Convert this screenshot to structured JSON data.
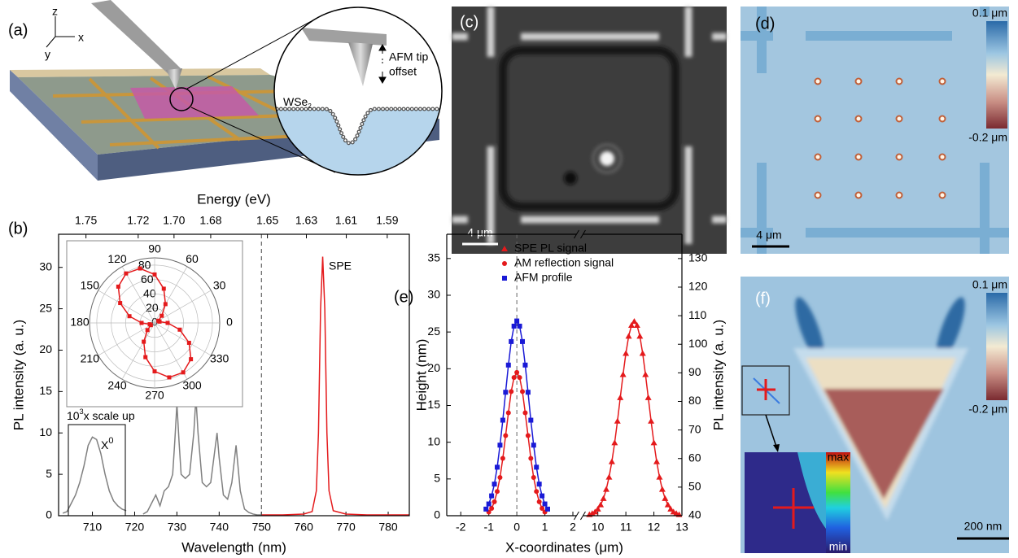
{
  "panels": {
    "a": {
      "label": "(a)",
      "axes": {
        "z": "z",
        "x": "x",
        "y": "y"
      },
      "tip_label": [
        "AFM tip",
        "offset"
      ],
      "material": {
        "base": "WSe",
        "sub": "2"
      }
    },
    "b": {
      "label": "(b)"
    },
    "c": {
      "label": "(c)",
      "scale_bar": "4 μm"
    },
    "d": {
      "label": "(d)",
      "scale_bar": "4 μm",
      "colorbar": [
        "0.1 μm",
        "-0.2 μm"
      ]
    },
    "e": {
      "label": "(e)"
    },
    "f": {
      "label": "(f)",
      "scale_bar": "200 nm",
      "colorbar": [
        "0.1 μm",
        "-0.2 μm"
      ],
      "inset_colorbar": [
        "max",
        "min"
      ]
    }
  },
  "chart_data": [
    {
      "type": "line",
      "xlabel": "Wavelength (nm)",
      "ylabel": "PL intensity (a. u.)",
      "x2label": "Energy (eV)",
      "xlim": [
        702,
        785
      ],
      "xticks": [
        710,
        720,
        730,
        740,
        750,
        760,
        770,
        780
      ],
      "ylim": [
        0,
        34
      ],
      "yticks": [
        0,
        5,
        10,
        15,
        20,
        25,
        30
      ],
      "x2ticks": [
        1.75,
        1.72,
        {
          "value": 1.7,
          "label": "1.70"
        },
        1.68,
        1.65,
        1.63,
        1.61,
        1.59
      ],
      "vline": 750,
      "annotations": {
        "spe": "SPE",
        "x0": {
          "base": "X",
          "sup": "0"
        },
        "scale": {
          "base": "10",
          "sup": "3",
          "rest": "x scale up"
        }
      },
      "series": [
        {
          "color": "#808080",
          "x": [
            703,
            704,
            705,
            706,
            707,
            708,
            709,
            710,
            711,
            712,
            713,
            714,
            715,
            716,
            717,
            718,
            720,
            722,
            723,
            724,
            725,
            726,
            727,
            728,
            729,
            729.5,
            730,
            730.5,
            731,
            732,
            733,
            734,
            734.5,
            735,
            736,
            737,
            738,
            739,
            739.5,
            740,
            741,
            742,
            743,
            744,
            745,
            746,
            747,
            748,
            749,
            750
          ],
          "values": [
            0.3,
            0.5,
            1.5,
            2.5,
            4,
            6,
            8.5,
            9.5,
            9.2,
            7.5,
            5,
            3,
            1.8,
            1.2,
            0.8,
            0.6,
            null,
            0.2,
            0.5,
            1.5,
            2.5,
            1.2,
            3,
            3.5,
            5,
            9,
            13.5,
            9,
            5,
            4.5,
            5,
            10,
            14.3,
            10,
            4,
            3.5,
            4,
            8,
            10,
            7,
            2.5,
            2,
            4,
            8.5,
            3,
            0.8,
            0.4,
            0.2,
            0.1,
            0.1
          ]
        },
        {
          "color": "#e41a1c",
          "x": [
            750,
            755,
            760,
            762,
            763,
            763.5,
            764,
            764.5,
            765,
            765.5,
            766,
            767,
            770,
            775,
            780,
            785
          ],
          "values": [
            0.1,
            0.1,
            0.2,
            0.5,
            3,
            10,
            25,
            31.3,
            25,
            10,
            3,
            0.6,
            0.2,
            0.1,
            0.1,
            0.1
          ]
        }
      ],
      "inset": {
        "type": "polar",
        "rlim": [
          0,
          90
        ],
        "rticks": [
          0,
          20,
          40,
          60,
          80
        ],
        "angle_ticks": [
          0,
          30,
          60,
          90,
          120,
          150,
          180,
          210,
          240,
          270,
          300,
          330
        ],
        "color": "#e41a1c",
        "angles": [
          0,
          15,
          30,
          45,
          60,
          75,
          90,
          105,
          120,
          135,
          150,
          165,
          180,
          195,
          210,
          225,
          240,
          255,
          270,
          285,
          300,
          315,
          330,
          345
        ],
        "values": [
          18,
          7,
          6,
          14,
          30,
          49,
          67,
          78,
          79,
          71,
          55,
          36,
          18,
          7,
          6,
          14,
          30,
          49,
          67,
          78,
          79,
          71,
          55,
          36
        ]
      }
    },
    {
      "type": "scatter",
      "xlabel": "X-coordinates (μm)",
      "ylabel": "Height (nm)",
      "y2label": "PL intensity (a. u.)",
      "xlim": [
        -2.5,
        13
      ],
      "xbreak": [
        2.1,
        9.5
      ],
      "xticks": [
        -2,
        -1,
        0,
        1,
        2,
        10,
        11,
        12,
        13
      ],
      "ylim": [
        0,
        38.3
      ],
      "yticks": [
        0,
        5,
        10,
        15,
        20,
        25,
        30,
        35
      ],
      "y2lim": [
        40,
        138.5
      ],
      "y2ticks": [
        40,
        50,
        60,
        70,
        80,
        90,
        100,
        110,
        120,
        130
      ],
      "vline": 0,
      "legend": "top-right",
      "series": [
        {
          "name": "SPE PL signal",
          "color": "#e41a1c",
          "marker": "triangle",
          "axis": "y2",
          "x": [
            9.7,
            9.8,
            9.9,
            10,
            10.1,
            10.2,
            10.3,
            10.4,
            10.5,
            10.6,
            10.7,
            10.8,
            10.9,
            11,
            11.1,
            11.2,
            11.3,
            11.4,
            11.5,
            11.6,
            11.7,
            11.8,
            11.9,
            12,
            12.1,
            12.2,
            12.3,
            12.4,
            12.5,
            12.6,
            12.7,
            12.8,
            12.9
          ],
          "values": [
            40.4,
            40.8,
            41.3,
            42.3,
            43.8,
            46,
            49.2,
            53.5,
            58.9,
            65.5,
            73.1,
            81.3,
            89.4,
            96.8,
            102.8,
            106.6,
            108,
            106.6,
            102.8,
            96.8,
            89.4,
            81.3,
            73.1,
            65.5,
            58.9,
            53.5,
            49.2,
            46,
            43.8,
            42.3,
            41.3,
            40.8,
            40.4
          ]
        },
        {
          "name": "AM reflection signal",
          "color": "#e41a1c",
          "marker": "circle",
          "x": [
            -1,
            -0.9,
            -0.8,
            -0.7,
            -0.6,
            -0.5,
            -0.4,
            -0.3,
            -0.2,
            -0.1,
            0,
            0.1,
            0.2,
            0.3,
            0.4,
            0.5,
            0.6,
            0.7,
            0.8,
            0.9,
            1
          ],
          "values": [
            0.5,
            1,
            1.9,
            3.3,
            5.2,
            7.8,
            10.9,
            14,
            16.9,
            18.8,
            19.5,
            18.8,
            16.9,
            14,
            10.9,
            7.8,
            5.2,
            3.3,
            1.9,
            1,
            0.5
          ]
        },
        {
          "name": "AFM profile",
          "color": "#1a1ad6",
          "marker": "square",
          "x": [
            -1.1,
            -1,
            -0.9,
            -0.8,
            -0.7,
            -0.6,
            -0.5,
            -0.4,
            -0.3,
            -0.2,
            -0.1,
            0,
            0.1,
            0.2,
            0.3,
            0.4,
            0.5,
            0.6,
            0.7,
            0.8,
            0.9,
            1,
            1.1
          ],
          "values": [
            0.9,
            1.6,
            2.7,
            4.3,
            6.6,
            9.6,
            13,
            16.8,
            20.5,
            23.7,
            25.8,
            26.5,
            25.8,
            23.7,
            20.5,
            16.8,
            13,
            9.6,
            6.6,
            4.3,
            2.7,
            1.6,
            0.9
          ]
        }
      ]
    }
  ]
}
